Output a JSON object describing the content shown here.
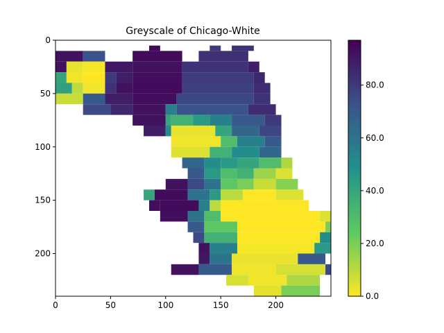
{
  "chart_data": {
    "type": "heatmap",
    "title": "Greyscale of Chicago-White",
    "xlabel": "",
    "ylabel": "",
    "xlim": [
      0,
      250
    ],
    "ylim": [
      240,
      0
    ],
    "x_ticks": [
      0,
      50,
      100,
      150,
      200
    ],
    "y_ticks": [
      0,
      50,
      100,
      150,
      200
    ],
    "colorbar": {
      "colormap": "viridis_r",
      "range": [
        0,
        97
      ],
      "ticks": [
        0,
        20,
        40,
        60,
        80
      ],
      "tick_labels": [
        "0.0",
        "20.0",
        "40.0",
        "60.0",
        "80.0"
      ]
    },
    "value_rows": [
      {
        "y": 0,
        "spans": []
      },
      {
        "y": 5,
        "spans": [
          [
            85,
            95,
            95
          ],
          [
            140,
            150,
            80
          ],
          [
            160,
            180,
            82
          ]
        ]
      },
      {
        "y": 10,
        "spans": [
          [
            0,
            25,
            92
          ],
          [
            25,
            45,
            72
          ],
          [
            70,
            115,
            94
          ],
          [
            130,
            175,
            83
          ]
        ]
      },
      {
        "y": 20,
        "spans": [
          [
            0,
            10,
            92
          ],
          [
            10,
            25,
            3
          ],
          [
            25,
            45,
            1
          ],
          [
            45,
            70,
            90
          ],
          [
            70,
            115,
            92
          ],
          [
            115,
            175,
            82
          ],
          [
            175,
            185,
            88
          ]
        ]
      },
      {
        "y": 30,
        "spans": [
          [
            0,
            10,
            40
          ],
          [
            10,
            25,
            2
          ],
          [
            25,
            45,
            0
          ],
          [
            45,
            55,
            80
          ],
          [
            55,
            70,
            88
          ],
          [
            70,
            115,
            93
          ],
          [
            115,
            180,
            80
          ],
          [
            180,
            190,
            86
          ]
        ]
      },
      {
        "y": 40,
        "spans": [
          [
            0,
            15,
            42
          ],
          [
            15,
            25,
            10
          ],
          [
            25,
            45,
            2
          ],
          [
            45,
            55,
            82
          ],
          [
            55,
            70,
            92
          ],
          [
            70,
            115,
            94
          ],
          [
            115,
            180,
            78
          ],
          [
            180,
            195,
            84
          ]
        ]
      },
      {
        "y": 50,
        "spans": [
          [
            0,
            25,
            8
          ],
          [
            25,
            45,
            70
          ],
          [
            45,
            70,
            88
          ],
          [
            70,
            110,
            93
          ],
          [
            110,
            180,
            76
          ],
          [
            180,
            195,
            82
          ]
        ]
      },
      {
        "y": 60,
        "spans": [
          [
            25,
            50,
            75
          ],
          [
            50,
            70,
            86
          ],
          [
            70,
            100,
            92
          ],
          [
            100,
            110,
            55
          ],
          [
            110,
            175,
            72
          ],
          [
            175,
            200,
            84
          ]
        ]
      },
      {
        "y": 70,
        "spans": [
          [
            70,
            100,
            92
          ],
          [
            100,
            105,
            40
          ],
          [
            105,
            125,
            35
          ],
          [
            125,
            140,
            45
          ],
          [
            140,
            160,
            55
          ],
          [
            160,
            190,
            70
          ],
          [
            190,
            205,
            80
          ]
        ]
      },
      {
        "y": 80,
        "spans": [
          [
            80,
            100,
            88
          ],
          [
            100,
            105,
            50
          ],
          [
            105,
            145,
            3
          ],
          [
            145,
            160,
            40
          ],
          [
            160,
            185,
            65
          ],
          [
            185,
            205,
            76
          ]
        ]
      },
      {
        "y": 90,
        "spans": [
          [
            105,
            150,
            2
          ],
          [
            150,
            165,
            30
          ],
          [
            165,
            190,
            55
          ],
          [
            190,
            205,
            70
          ]
        ]
      },
      {
        "y": 100,
        "spans": [
          [
            105,
            140,
            5
          ],
          [
            140,
            160,
            35
          ],
          [
            160,
            185,
            50
          ],
          [
            185,
            205,
            65
          ]
        ]
      },
      {
        "y": 110,
        "spans": [
          [
            115,
            135,
            65
          ],
          [
            135,
            150,
            50
          ],
          [
            150,
            165,
            45
          ],
          [
            165,
            185,
            40
          ],
          [
            185,
            205,
            30
          ],
          [
            205,
            215,
            12
          ]
        ]
      },
      {
        "y": 120,
        "spans": [
          [
            120,
            135,
            70
          ],
          [
            135,
            150,
            45
          ],
          [
            150,
            165,
            30
          ],
          [
            165,
            180,
            35
          ],
          [
            180,
            200,
            15
          ],
          [
            200,
            215,
            5
          ]
        ]
      },
      {
        "y": 130,
        "spans": [
          [
            100,
            120,
            92
          ],
          [
            120,
            135,
            75
          ],
          [
            135,
            150,
            60
          ],
          [
            150,
            165,
            25
          ],
          [
            165,
            180,
            20
          ],
          [
            180,
            200,
            8
          ],
          [
            200,
            220,
            18
          ]
        ]
      },
      {
        "y": 140,
        "spans": [
          [
            80,
            90,
            40
          ],
          [
            90,
            120,
            94
          ],
          [
            120,
            140,
            60
          ],
          [
            140,
            150,
            45
          ],
          [
            150,
            170,
            10
          ],
          [
            170,
            200,
            0
          ],
          [
            200,
            225,
            5
          ]
        ]
      },
      {
        "y": 150,
        "spans": [
          [
            85,
            95,
            93
          ],
          [
            95,
            130,
            94
          ],
          [
            130,
            140,
            55
          ],
          [
            140,
            150,
            10
          ],
          [
            150,
            230,
            0
          ]
        ]
      },
      {
        "y": 160,
        "spans": [
          [
            95,
            120,
            93
          ],
          [
            120,
            135,
            60
          ],
          [
            135,
            150,
            30
          ],
          [
            150,
            240,
            0
          ],
          [
            240,
            250,
            5
          ]
        ]
      },
      {
        "y": 170,
        "spans": [
          [
            120,
            135,
            70
          ],
          [
            135,
            165,
            25
          ],
          [
            165,
            245,
            0
          ],
          [
            245,
            250,
            20
          ]
        ]
      },
      {
        "y": 180,
        "spans": [
          [
            125,
            135,
            75
          ],
          [
            135,
            165,
            35
          ],
          [
            165,
            240,
            0
          ],
          [
            240,
            250,
            50
          ]
        ]
      },
      {
        "y": 190,
        "spans": [
          [
            130,
            140,
            92
          ],
          [
            140,
            165,
            55
          ],
          [
            165,
            235,
            1
          ],
          [
            235,
            250,
            45
          ]
        ]
      },
      {
        "y": 200,
        "spans": [
          [
            130,
            140,
            90
          ],
          [
            140,
            160,
            60
          ],
          [
            160,
            220,
            3
          ],
          [
            220,
            245,
            70
          ]
        ]
      },
      {
        "y": 210,
        "spans": [
          [
            105,
            130,
            92
          ],
          [
            130,
            160,
            70
          ],
          [
            160,
            200,
            2
          ],
          [
            200,
            245,
            6
          ],
          [
            245,
            250,
            75
          ]
        ]
      },
      {
        "y": 220,
        "spans": [
          [
            155,
            175,
            6
          ],
          [
            175,
            210,
            2
          ],
          [
            210,
            240,
            12
          ]
        ]
      },
      {
        "y": 230,
        "spans": [
          [
            180,
            205,
            4
          ],
          [
            205,
            240,
            20
          ]
        ]
      }
    ]
  }
}
